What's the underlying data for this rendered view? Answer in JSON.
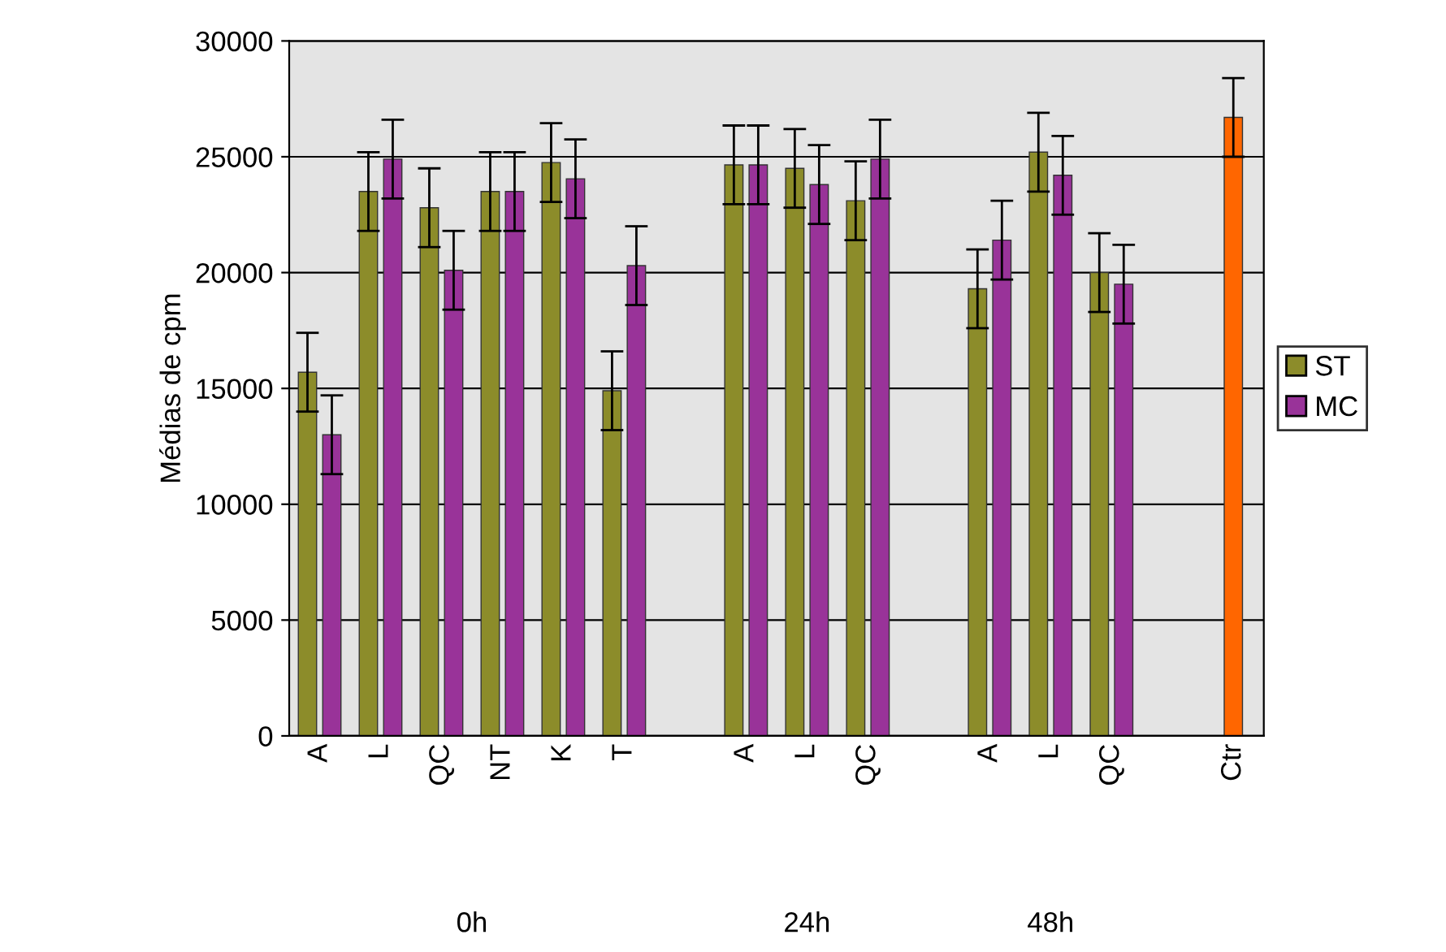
{
  "chart_data": {
    "type": "bar",
    "ylabel": "Médias de cpm",
    "categories": [
      "A",
      "L",
      "QC",
      "NT",
      "K",
      "T",
      null,
      "A",
      "L",
      "QC",
      null,
      "A",
      "L",
      "QC",
      null,
      "Ctr"
    ],
    "series": [
      {
        "name": "ST",
        "color": "#8c8c2a",
        "values": [
          15700,
          23500,
          22800,
          23500,
          24750,
          14900,
          null,
          24650,
          24500,
          23100,
          null,
          19300,
          25200,
          20000,
          null,
          null
        ],
        "errors": [
          1700,
          1700,
          1700,
          1700,
          1700,
          1700,
          null,
          1700,
          1700,
          1700,
          null,
          1700,
          1700,
          1700,
          null,
          null
        ]
      },
      {
        "name": "MC",
        "color": "#993399",
        "values": [
          13000,
          24900,
          20100,
          23500,
          24050,
          20300,
          null,
          24650,
          23800,
          24900,
          null,
          21400,
          24200,
          19500,
          null,
          null
        ],
        "errors": [
          1700,
          1700,
          1700,
          1700,
          1700,
          1700,
          null,
          1700,
          1700,
          1700,
          null,
          1700,
          1700,
          1700,
          null,
          null
        ]
      },
      {
        "color": "#ff6600",
        "values": [
          null,
          null,
          null,
          null,
          null,
          null,
          null,
          null,
          null,
          null,
          null,
          null,
          null,
          null,
          null,
          26700
        ],
        "errors": [
          null,
          null,
          null,
          null,
          null,
          null,
          null,
          null,
          null,
          null,
          null,
          null,
          null,
          null,
          null,
          1700
        ]
      }
    ],
    "ylim": [
      0,
      30000
    ],
    "yticks": [
      0,
      5000,
      10000,
      15000,
      20000,
      25000,
      30000
    ],
    "grid": "y",
    "legend": "right",
    "annotations": [
      "0h",
      "24h",
      "48h"
    ]
  }
}
